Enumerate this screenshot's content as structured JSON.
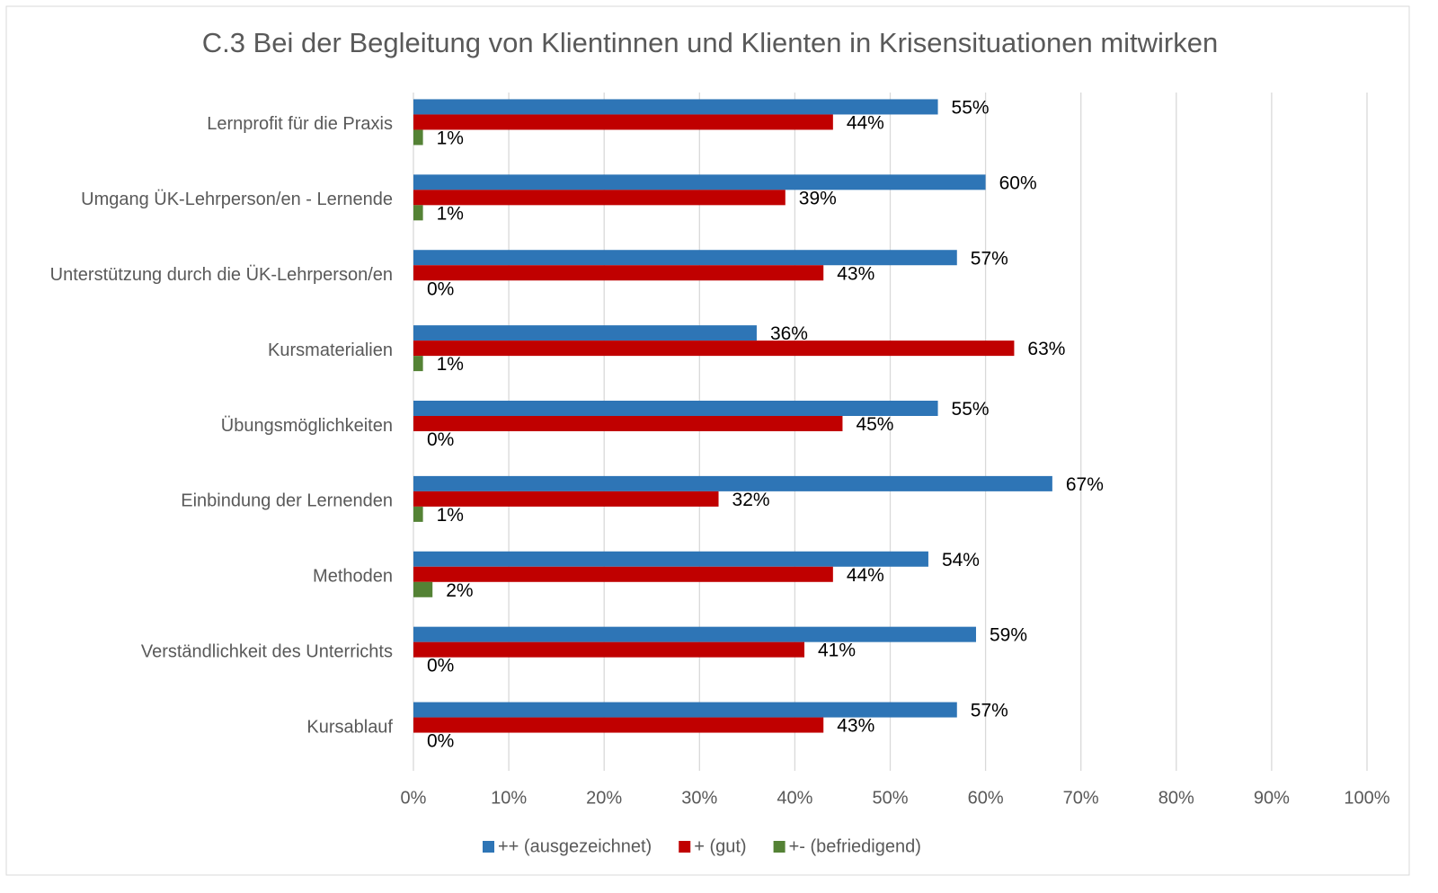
{
  "chart_data": {
    "type": "barh",
    "title": "C.3 Bei der Begleitung von Klientinnen und Klienten in Krisensituationen mitwirken",
    "categories": [
      "Lernprofit für die Praxis",
      "Umgang ÜK-Lehrperson/en - Lernende",
      "Unterstützung durch die ÜK-Lehrperson/en",
      "Kursmaterialien",
      "Übungsmöglichkeiten",
      "Einbindung der Lernenden",
      "Methoden",
      "Verständlichkeit des Unterrichts",
      "Kursablauf"
    ],
    "series": [
      {
        "name": "++ (ausgezeichnet)",
        "color": "#2e75b6",
        "values": [
          55,
          60,
          57,
          36,
          55,
          67,
          54,
          59,
          57
        ],
        "value_labels": [
          "55%",
          "60%",
          "57%",
          "36%",
          "55%",
          "67%",
          "54%",
          "59%",
          "57%"
        ]
      },
      {
        "name": "+ (gut)",
        "color": "#c00000",
        "values": [
          44,
          39,
          43,
          63,
          45,
          32,
          44,
          41,
          43
        ],
        "value_labels": [
          "44%",
          "39%",
          "43%",
          "63%",
          "45%",
          "32%",
          "44%",
          "41%",
          "43%"
        ]
      },
      {
        "name": "+- (befriedigend)",
        "color": "#548235",
        "values": [
          1,
          1,
          0,
          1,
          0,
          1,
          2,
          0,
          0
        ],
        "value_labels": [
          "1%",
          "1%",
          "0%",
          "1%",
          "0%",
          "1%",
          "2%",
          "0%",
          "0%"
        ]
      }
    ],
    "xlim": [
      0,
      100
    ],
    "xticks": [
      {
        "value": 0,
        "label": "0%"
      },
      {
        "value": 10,
        "label": "10%"
      },
      {
        "value": 20,
        "label": "20%"
      },
      {
        "value": 30,
        "label": "30%"
      },
      {
        "value": 40,
        "label": "40%"
      },
      {
        "value": 50,
        "label": "50%"
      },
      {
        "value": 60,
        "label": "60%"
      },
      {
        "value": 70,
        "label": "70%"
      },
      {
        "value": 80,
        "label": "80%"
      },
      {
        "value": 90,
        "label": "90%"
      },
      {
        "value": 100,
        "label": "100%"
      }
    ],
    "grid": true,
    "legend": "bottom"
  }
}
